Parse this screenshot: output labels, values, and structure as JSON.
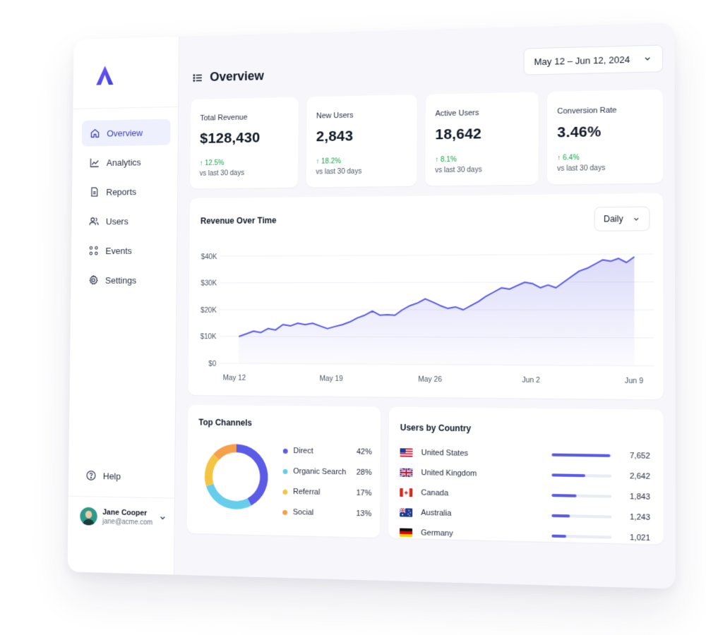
{
  "sidebar": {
    "items": [
      {
        "label": "Overview",
        "icon": "home-icon",
        "active": true
      },
      {
        "label": "Analytics",
        "icon": "trend-icon"
      },
      {
        "label": "Reports",
        "icon": "report-icon"
      },
      {
        "label": "Users",
        "icon": "users-icon"
      },
      {
        "label": "Events",
        "icon": "events-icon"
      },
      {
        "label": "Settings",
        "icon": "gear-icon"
      }
    ],
    "help_label": "Help",
    "user": {
      "name": "Jane Cooper",
      "email": "jane@acme.com"
    }
  },
  "header": {
    "title": "Overview",
    "date_range": "May 12 – Jun 12, 2024"
  },
  "kpis": [
    {
      "label": "Total Revenue",
      "value": "$128,430",
      "delta": "↑ 12.5%",
      "sub": "vs last 30 days"
    },
    {
      "label": "New Users",
      "value": "2,843",
      "delta": "↑ 18.2%",
      "sub": "vs last 30 days"
    },
    {
      "label": "Active Users",
      "value": "18,642",
      "delta": "↑ 8.1%",
      "sub": "vs last 30 days"
    },
    {
      "label": "Conversion Rate",
      "value": "3.46%",
      "delta": "↑ 6.4%",
      "sub": "vs last 30 days"
    }
  ],
  "revenue": {
    "title": "Revenue Over Time",
    "granularity": "Daily",
    "chart_data": {
      "type": "area",
      "y_ticks": [
        "$0",
        "$10K",
        "$20K",
        "$30K",
        "$40K"
      ],
      "x_ticks": [
        "May 12",
        "May 19",
        "May 26",
        "Jun 2",
        "Jun 9"
      ],
      "ylim": [
        0,
        40000
      ],
      "values": [
        10000,
        11000,
        12000,
        11500,
        13000,
        12500,
        14500,
        14000,
        15000,
        14500,
        15000,
        14000,
        13000,
        13800,
        14500,
        15500,
        17000,
        18000,
        19500,
        18000,
        18200,
        18000,
        20000,
        21500,
        22500,
        24000,
        22800,
        21500,
        20500,
        21000,
        20000,
        21500,
        23000,
        25000,
        26500,
        28000,
        27500,
        28800,
        30000,
        29500,
        28000,
        29000,
        28000,
        30000,
        32000,
        34000,
        35000,
        36500,
        38000,
        37500,
        38500,
        37000,
        39000
      ],
      "color": "#5b5be6"
    }
  },
  "channels": {
    "title": "Top Channels",
    "chart_data": {
      "type": "pie",
      "labels": [
        "Direct",
        "Organic Search",
        "Referral",
        "Social"
      ],
      "values": [
        42,
        28,
        17,
        13
      ],
      "display": [
        "42%",
        "28%",
        "17%",
        "13%"
      ],
      "colors": [
        "#5b5be6",
        "#66cdea",
        "#f4c542",
        "#f5a04a"
      ]
    }
  },
  "countries": {
    "title": "Users by Country",
    "rows": [
      {
        "name": "United States",
        "value": "7,652",
        "fraction": 0.97,
        "flag": "us"
      },
      {
        "name": "United Kingdom",
        "value": "2,642",
        "fraction": 0.56,
        "flag": "gb"
      },
      {
        "name": "Canada",
        "value": "1,843",
        "fraction": 0.42,
        "flag": "ca"
      },
      {
        "name": "Australia",
        "value": "1,243",
        "fraction": 0.3,
        "flag": "au"
      },
      {
        "name": "Germany",
        "value": "1,021",
        "fraction": 0.24,
        "flag": "de"
      }
    ]
  }
}
